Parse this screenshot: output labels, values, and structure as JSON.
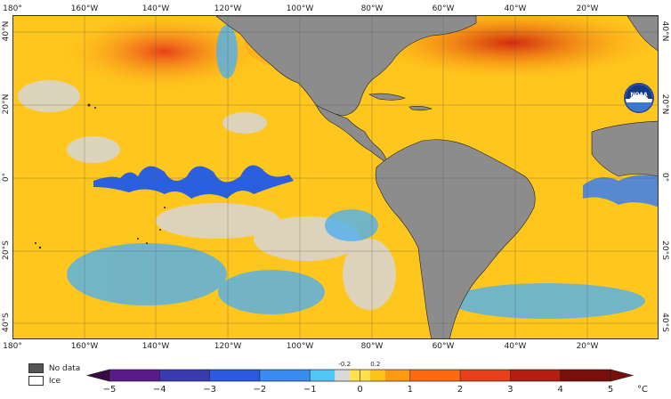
{
  "map": {
    "lon_labels": [
      "180°",
      "160°W",
      "140°W",
      "120°W",
      "100°W",
      "80°W",
      "60°W",
      "40°W",
      "20°W"
    ],
    "lat_labels": [
      "40°N",
      "20°N",
      "0°",
      "20°S",
      "40°S"
    ],
    "logo_text": "NOAA"
  },
  "legend": {
    "items": [
      {
        "label": "No data",
        "color": "#555555"
      },
      {
        "label": "Ice",
        "color": "#ffffff"
      }
    ]
  },
  "colorbar": {
    "ticks": [
      "−5",
      "−4",
      "−3",
      "−2",
      "−1",
      "0",
      "1",
      "2",
      "3",
      "4",
      "5"
    ],
    "unit": "°C",
    "minor_ticks": [
      "-0.2",
      "0.2"
    ],
    "colors": [
      "#3b0a45",
      "#5a1a8a",
      "#3a3ab0",
      "#2a5ae0",
      "#3a8cf0",
      "#4fc6f5",
      "#d9d9d9",
      "#ffe24a",
      "#ffc21a",
      "#ff9a10",
      "#ff6a10",
      "#e8401a",
      "#b41d10",
      "#7a0e08"
    ]
  }
}
